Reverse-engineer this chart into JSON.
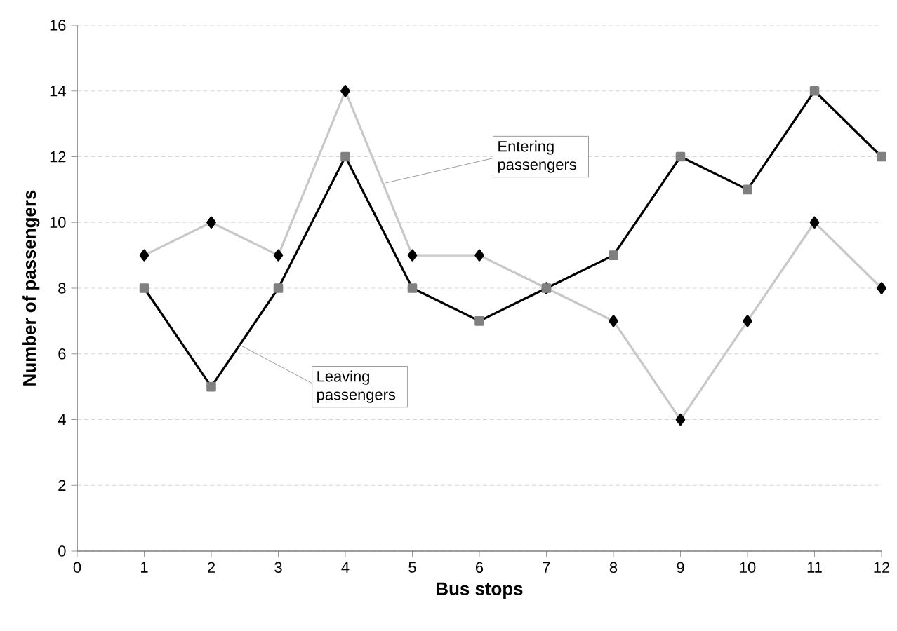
{
  "chart_data": {
    "type": "line",
    "xlabel": "Bus stops",
    "ylabel": "Number of passengers",
    "x": [
      1,
      2,
      3,
      4,
      5,
      6,
      7,
      8,
      9,
      10,
      11,
      12
    ],
    "series": [
      {
        "name": "Entering passengers",
        "color": "#c8c8c8",
        "marker": "diamond",
        "values": [
          9,
          10,
          9,
          14,
          9,
          9,
          8,
          7,
          4,
          7,
          10,
          8
        ]
      },
      {
        "name": "Leaving passengers",
        "color": "#000000",
        "marker": "square",
        "values": [
          8,
          5,
          8,
          12,
          8,
          7,
          8,
          9,
          12,
          11,
          14,
          12
        ]
      }
    ],
    "xlim": [
      0,
      12
    ],
    "xticks": [
      0,
      1,
      2,
      3,
      4,
      5,
      6,
      7,
      8,
      9,
      10,
      11,
      12
    ],
    "ylim": [
      0,
      16
    ],
    "yticks": [
      0,
      2,
      4,
      6,
      8,
      10,
      12,
      14,
      16
    ],
    "grid": "y",
    "line_style": "solid"
  }
}
